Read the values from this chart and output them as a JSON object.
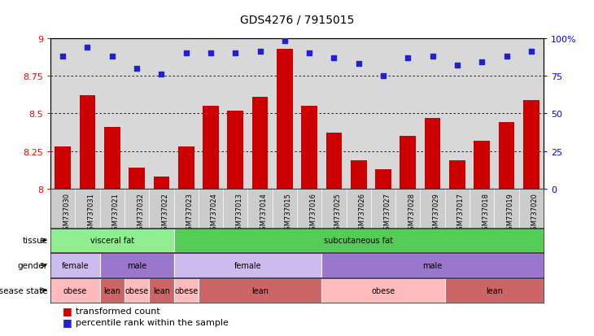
{
  "title": "GDS4276 / 7915015",
  "samples": [
    "GSM737030",
    "GSM737031",
    "GSM737021",
    "GSM737032",
    "GSM737022",
    "GSM737023",
    "GSM737024",
    "GSM737013",
    "GSM737014",
    "GSM737015",
    "GSM737016",
    "GSM737025",
    "GSM737026",
    "GSM737027",
    "GSM737028",
    "GSM737029",
    "GSM737017",
    "GSM737018",
    "GSM737019",
    "GSM737020"
  ],
  "bar_values": [
    8.28,
    8.62,
    8.41,
    8.14,
    8.08,
    8.28,
    8.55,
    8.52,
    8.61,
    8.93,
    8.55,
    8.37,
    8.19,
    8.13,
    8.35,
    8.47,
    8.19,
    8.32,
    8.44,
    8.59
  ],
  "percentile_values": [
    88,
    94,
    88,
    80,
    76,
    90,
    90,
    90,
    91,
    98,
    90,
    87,
    83,
    75,
    87,
    88,
    82,
    84,
    88,
    91
  ],
  "ylim": [
    8.0,
    9.0
  ],
  "y2lim": [
    0,
    100
  ],
  "yticks": [
    8.0,
    8.25,
    8.5,
    8.75,
    9.0
  ],
  "y2ticks": [
    0,
    25,
    50,
    75,
    100
  ],
  "grid_lines": [
    8.25,
    8.5,
    8.75
  ],
  "bar_color": "#cc0000",
  "dot_color": "#2222cc",
  "tissue_segments": [
    {
      "text": "visceral fat",
      "start": 0,
      "end": 5,
      "color": "#90ee90"
    },
    {
      "text": "subcutaneous fat",
      "start": 5,
      "end": 20,
      "color": "#55cc55"
    }
  ],
  "gender_segments": [
    {
      "text": "female",
      "start": 0,
      "end": 2,
      "color": "#ccbbee"
    },
    {
      "text": "male",
      "start": 2,
      "end": 5,
      "color": "#9977cc"
    },
    {
      "text": "female",
      "start": 5,
      "end": 11,
      "color": "#ccbbee"
    },
    {
      "text": "male",
      "start": 11,
      "end": 20,
      "color": "#9977cc"
    }
  ],
  "disease_segments": [
    {
      "text": "obese",
      "start": 0,
      "end": 2,
      "color": "#ffbbbb"
    },
    {
      "text": "lean",
      "start": 2,
      "end": 3,
      "color": "#cc6666"
    },
    {
      "text": "obese",
      "start": 3,
      "end": 4,
      "color": "#ffbbbb"
    },
    {
      "text": "lean",
      "start": 4,
      "end": 5,
      "color": "#cc6666"
    },
    {
      "text": "obese",
      "start": 5,
      "end": 6,
      "color": "#ffbbbb"
    },
    {
      "text": "lean",
      "start": 6,
      "end": 11,
      "color": "#cc6666"
    },
    {
      "text": "obese",
      "start": 11,
      "end": 16,
      "color": "#ffbbbb"
    },
    {
      "text": "lean",
      "start": 16,
      "end": 20,
      "color": "#cc6666"
    }
  ],
  "row_labels": [
    "tissue",
    "gender",
    "disease state"
  ],
  "legend_labels": [
    "transformed count",
    "percentile rank within the sample"
  ],
  "legend_colors": [
    "#cc0000",
    "#2222cc"
  ],
  "axis_bg": "#d8d8d8",
  "plot_bg": "#ffffff",
  "tick_label_bg": "#cccccc"
}
